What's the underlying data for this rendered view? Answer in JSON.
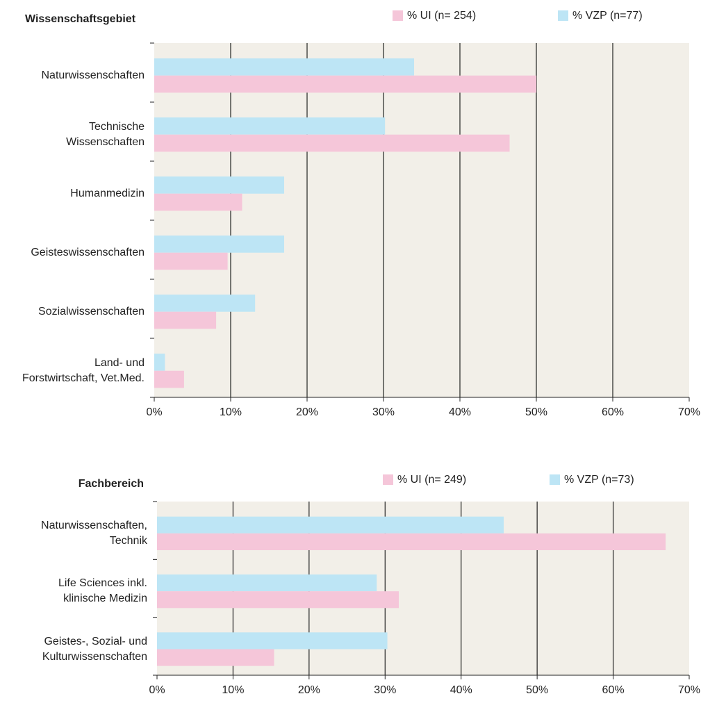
{
  "chart_data": [
    {
      "type": "hbar",
      "title": "Wissenschaftsgebiet",
      "categories": [
        "Naturwissenschaften",
        "Technische\nWissenschaften",
        "Humanmedizin",
        "Geisteswissenschaften",
        "Sozialwissenschaften",
        "Land- und\nForstwirtschaft, Vet.Med."
      ],
      "series": [
        {
          "name": "% VZP (n=77)",
          "color": "#bde5f5",
          "values": [
            34.0,
            30.2,
            17.0,
            17.0,
            13.2,
            1.4
          ]
        },
        {
          "name": "% UI (n= 254)",
          "color": "#f5c6d9",
          "values": [
            50.0,
            46.5,
            11.5,
            9.6,
            8.1,
            3.9
          ]
        }
      ],
      "xlim": [
        0,
        70
      ],
      "xticks": [
        {
          "value": 0,
          "label": "0%"
        },
        {
          "value": 10,
          "label": "10%"
        },
        {
          "value": 20,
          "label": "20%"
        },
        {
          "value": 30,
          "label": "30%"
        },
        {
          "value": 40,
          "label": "40%"
        },
        {
          "value": 50,
          "label": "50%"
        },
        {
          "value": 60,
          "label": "60%"
        },
        {
          "value": 70,
          "label": "70%"
        }
      ],
      "grid": true
    },
    {
      "type": "hbar",
      "title": "Fachbereich",
      "categories": [
        "Naturwissenschaften,\nTechnik",
        "Life Sciences inkl.\nklinische Medizin",
        "Geistes-, Sozial- und\nKulturwissenschaften"
      ],
      "series": [
        {
          "name": "% VZP (n=73)",
          "color": "#bde5f5",
          "values": [
            45.6,
            28.9,
            30.3
          ]
        },
        {
          "name": "% UI (n= 249)",
          "color": "#f5c6d9",
          "values": [
            66.9,
            31.8,
            15.4
          ]
        }
      ],
      "xlim": [
        0,
        70
      ],
      "xticks": [
        {
          "value": 0,
          "label": "0%"
        },
        {
          "value": 10,
          "label": "10%"
        },
        {
          "value": 20,
          "label": "20%"
        },
        {
          "value": 30,
          "label": "30%"
        },
        {
          "value": 40,
          "label": "40%"
        },
        {
          "value": 50,
          "label": "50%"
        },
        {
          "value": 60,
          "label": "60%"
        },
        {
          "value": 70,
          "label": "70%"
        }
      ],
      "grid": true
    }
  ]
}
